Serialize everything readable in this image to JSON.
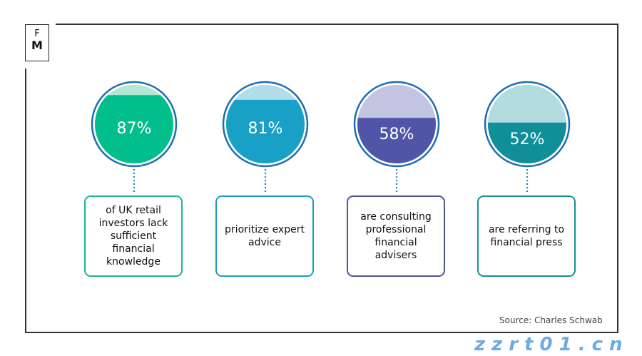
{
  "logo": {
    "line1": "F",
    "line2": "M"
  },
  "chart_data": {
    "type": "gauge",
    "items": [
      {
        "value": 87,
        "label": "87%",
        "text": "of UK retail investors lack sufficient financial knowledge",
        "fill": "#00BF8C",
        "empty": "#B4E6D6",
        "border": "#1BB596"
      },
      {
        "value": 81,
        "label": "81%",
        "text": "prioritize expert advice",
        "fill": "#18A0C6",
        "empty": "#B3DDEA",
        "border": "#1A9DC0"
      },
      {
        "value": 58,
        "label": "58%",
        "text": "are consulting professional financial advisers",
        "fill": "#5155A8",
        "empty": "#C3C4E2",
        "border": "#5155A0"
      },
      {
        "value": 52,
        "label": "52%",
        "text": "are referring to financial press",
        "fill": "#108F98",
        "empty": "#B2DCE0",
        "border": "#1A8F92"
      }
    ],
    "ring_color": "#1E6DB2",
    "connector_color": "#1E86C8"
  },
  "source": "Source: Charles Schwab",
  "watermark": "zzrt01.cn"
}
